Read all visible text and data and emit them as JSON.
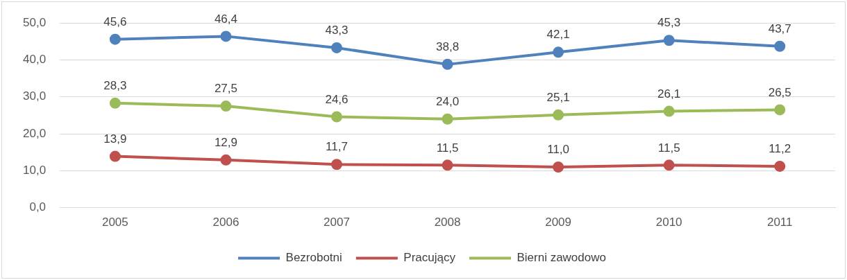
{
  "chart_data": {
    "type": "line",
    "categories": [
      "2005",
      "2006",
      "2007",
      "2008",
      "2009",
      "2010",
      "2011"
    ],
    "series": [
      {
        "name": "Bezrobotni",
        "color": "#4f81bd",
        "values": [
          45.6,
          46.4,
          43.3,
          38.8,
          42.1,
          45.3,
          43.7
        ],
        "value_labels": [
          "45,6",
          "46,4",
          "43,3",
          "38,8",
          "42,1",
          "45,3",
          "43,7"
        ]
      },
      {
        "name": "Pracujący",
        "color": "#c0504d",
        "values": [
          13.9,
          12.9,
          11.7,
          11.5,
          11.0,
          11.5,
          11.2
        ],
        "value_labels": [
          "13,9",
          "12,9",
          "11,7",
          "11,5",
          "11,0",
          "11,5",
          "11,2"
        ]
      },
      {
        "name": "Bierni zawodowo",
        "color": "#9bbb59",
        "values": [
          28.3,
          27.5,
          24.6,
          24.0,
          25.1,
          26.1,
          26.5
        ],
        "value_labels": [
          "28,3",
          "27,5",
          "24,6",
          "24,0",
          "25,1",
          "26,1",
          "26,5"
        ]
      }
    ],
    "ylim": [
      0,
      50
    ],
    "yticks": [
      {
        "value": 0,
        "label": "0,0"
      },
      {
        "value": 10,
        "label": "10,0"
      },
      {
        "value": 20,
        "label": "20,0"
      },
      {
        "value": 30,
        "label": "30,0"
      },
      {
        "value": 40,
        "label": "40,0"
      },
      {
        "value": 50,
        "label": "50,0"
      }
    ],
    "grid": "y",
    "legend": "bottom",
    "marker": "circle",
    "line_style": "solid"
  }
}
